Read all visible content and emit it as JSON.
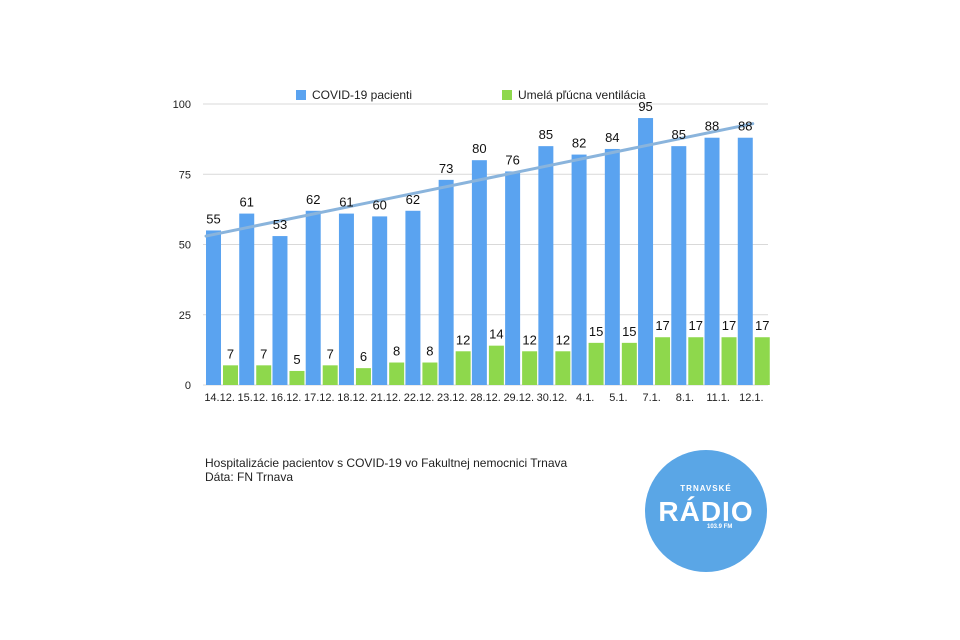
{
  "chart_data": {
    "type": "bar",
    "categories": [
      "14.12.",
      "15.12.",
      "16.12.",
      "17.12.",
      "18.12.",
      "21.12.",
      "22.12.",
      "23.12.",
      "28.12.",
      "29.12.",
      "30.12.",
      "4.1.",
      "5.1.",
      "7.1.",
      "8.1.",
      "11.1.",
      "12.1."
    ],
    "series": [
      {
        "name": "COVID-19 pacienti",
        "color": "#5aa3f0",
        "values": [
          55,
          61,
          53,
          62,
          61,
          60,
          62,
          73,
          80,
          76,
          85,
          82,
          84,
          95,
          85,
          88,
          88
        ]
      },
      {
        "name": "Umelá pľúcna ventilácia",
        "color": "#8ed84c",
        "values": [
          7,
          7,
          5,
          7,
          6,
          8,
          8,
          12,
          14,
          12,
          12,
          15,
          15,
          17,
          17,
          17,
          17
        ]
      }
    ],
    "trendline": {
      "series": "COVID-19 pacienti",
      "from": 53,
      "to": 93,
      "color": "#8ab4dc"
    },
    "ylim": [
      0,
      100
    ],
    "yticks": [
      "0",
      "25",
      "50",
      "75",
      "100"
    ],
    "grid": true,
    "legend_position": "top-center"
  },
  "caption": {
    "line1": "Hospitalizácie pacientov s COVID-19 vo Fakultnej nemocnici Trnava",
    "line2": "Dáta: FN Trnava"
  },
  "logo": {
    "line1": "TRNAVSKÉ",
    "line2": "RÁDIO",
    "line3": "103.9 FM",
    "color": "#5aa6e6"
  }
}
